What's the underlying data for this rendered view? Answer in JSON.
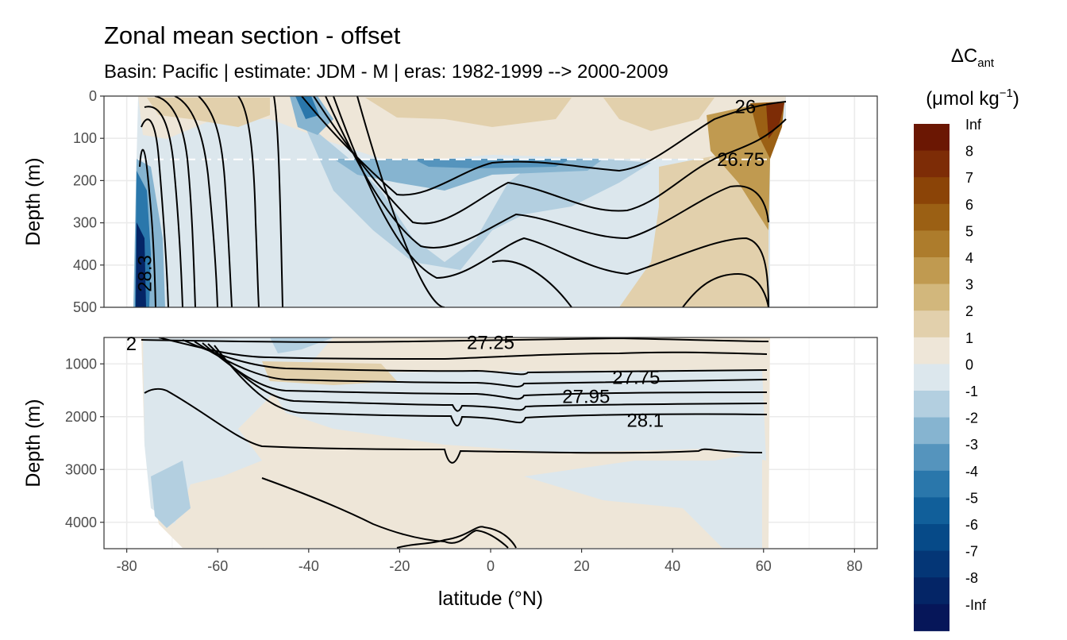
{
  "chart_data": {
    "type": "heatmap",
    "title": "Zonal mean section - offset",
    "subtitle": "Basin: Pacific | estimate: JDM - M | eras: 1982-1999 --> 2000-2009",
    "xlabel": "latitude (°N)",
    "ylabel": "Depth (m)",
    "xlim": [
      -85,
      85
    ],
    "x_ticks": [
      "-80",
      "-60",
      "-40",
      "-20",
      "0",
      "20",
      "40",
      "60",
      "80"
    ],
    "panels": [
      {
        "name": "upper",
        "ylim": [
          0,
          500
        ],
        "y_ticks": [
          "0",
          "100",
          "200",
          "300",
          "400",
          "500"
        ]
      },
      {
        "name": "lower",
        "ylim": [
          500,
          4500
        ],
        "y_ticks": [
          "1000",
          "2000",
          "3000",
          "4000"
        ]
      }
    ],
    "reference_line_depth": 150,
    "legend": {
      "title_main": "ΔC",
      "title_sub": "ant",
      "unit_open": "(μmol kg",
      "unit_sup": "−1",
      "unit_close": ")",
      "labels": [
        "Inf",
        "8",
        "7",
        "6",
        "5",
        "4",
        "3",
        "2",
        "1",
        "0",
        "-1",
        "-2",
        "-3",
        "-4",
        "-5",
        "-6",
        "-7",
        "-8",
        "-Inf"
      ],
      "colors": [
        "#6b1703",
        "#7d2c06",
        "#8b4407",
        "#9b6014",
        "#ad7c2c",
        "#c09a50",
        "#d2b77c",
        "#e2d0ac",
        "#eee6d8",
        "#dce7ed",
        "#b3cfe0",
        "#86b4d0",
        "#5594bd",
        "#2a77ab",
        "#115f9a",
        "#064a88",
        "#043676",
        "#042566",
        "#061659"
      ]
    },
    "contour_labels": [
      {
        "text": "26",
        "lat": 56,
        "depth": 25
      },
      {
        "text": "26.75",
        "lat": 55,
        "depth": 150
      },
      {
        "text": "28.3",
        "lat": -76,
        "depth": 420
      },
      {
        "text": "27.25",
        "lat": 0,
        "depth": 600
      },
      {
        "text": "27.75",
        "lat": 32,
        "depth": 1260
      },
      {
        "text": "27.95",
        "lat": 21,
        "depth": 1620
      },
      {
        "text": "28.1",
        "lat": 34,
        "depth": 2070
      },
      {
        "text": "2",
        "lat": -79,
        "depth": 620
      }
    ]
  }
}
